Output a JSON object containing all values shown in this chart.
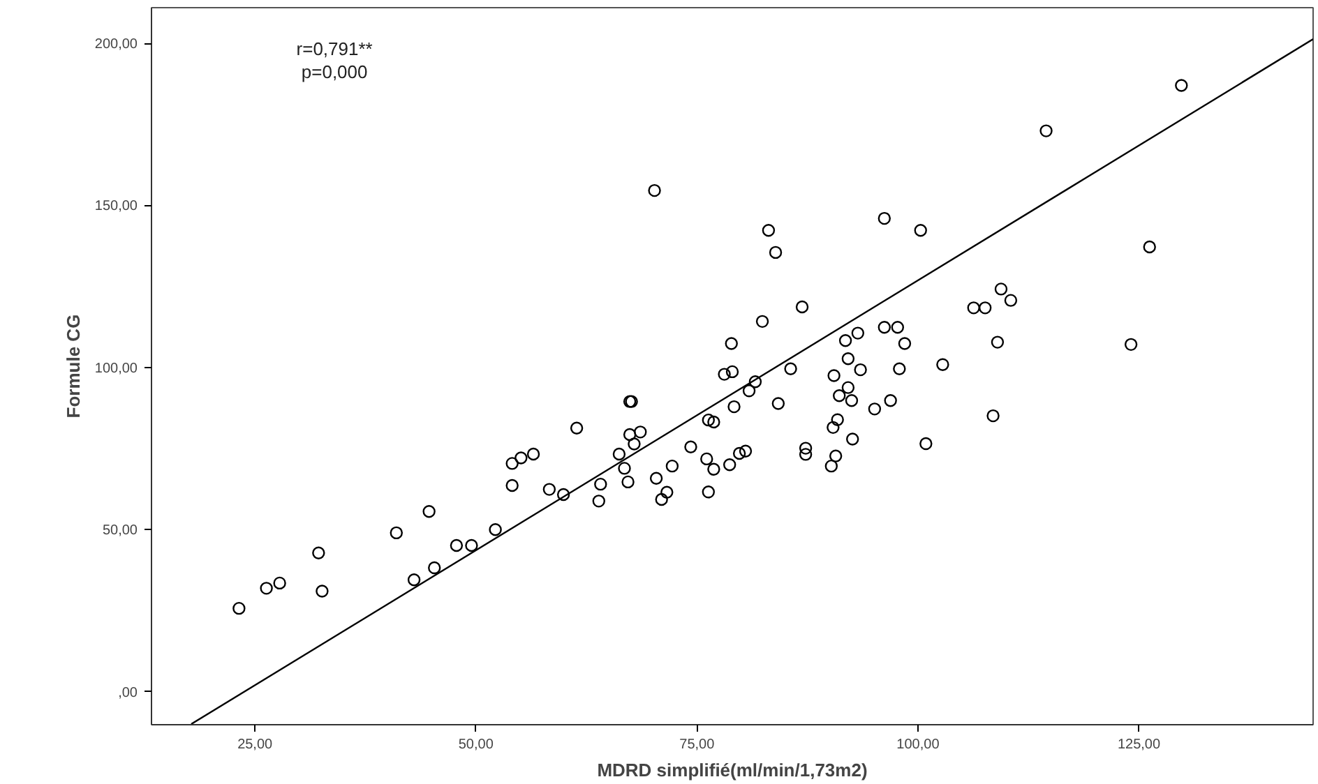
{
  "chart_data": {
    "type": "scatter",
    "xlabel": "MDRD simplifié(ml/min/1,73m2)",
    "ylabel": "Formule CG",
    "annotations": [
      "r=0,791**",
      "p=0,000"
    ],
    "xlim": [
      13.3,
      144.7
    ],
    "ylim": [
      -10.2,
      211
    ],
    "xticks": [
      {
        "value": 25,
        "label": "25,00"
      },
      {
        "value": 50,
        "label": "50,00"
      },
      {
        "value": 75,
        "label": "75,00"
      },
      {
        "value": 100,
        "label": "100,00"
      },
      {
        "value": 125,
        "label": "125,00"
      }
    ],
    "yticks": [
      {
        "value": 0,
        "label": ",00"
      },
      {
        "value": 50,
        "label": "50,00"
      },
      {
        "value": 100,
        "label": "100,00"
      },
      {
        "value": 150,
        "label": "150,00"
      },
      {
        "value": 200,
        "label": "200,00"
      }
    ],
    "grid": false,
    "marker": "circle",
    "series": [
      {
        "color": "#000000",
        "x": [
          23.2,
          26.3,
          27.8,
          32.2,
          32.6,
          41.0,
          44.7,
          43.0,
          45.3,
          47.8,
          49.5,
          52.2,
          54.1,
          54.1,
          55.1,
          56.5,
          58.3,
          59.9,
          61.4,
          63.9,
          64.1,
          66.2,
          66.8,
          67.2,
          67.4,
          67.6,
          67.4,
          68.6,
          67.9,
          70.4,
          71.0,
          71.6,
          72.2,
          74.3,
          76.1,
          76.9,
          76.3,
          76.3,
          76.9,
          78.7,
          78.1,
          79.0,
          79.2,
          79.8,
          80.5,
          80.9,
          81.6,
          84.2,
          85.6,
          87.3,
          87.3,
          90.5,
          92.1,
          91.1,
          92.5,
          90.9,
          90.4,
          90.7,
          90.2,
          92.6,
          93.5,
          92.1,
          97.9,
          102.8,
          96.9,
          95.1,
          100.9,
          108.5,
          129.8,
          114.5,
          83.1,
          83.9,
          96.2,
          100.3,
          126.2,
          86.9,
          82.4,
          78.9,
          109.4,
          106.3,
          107.6,
          110.5,
          96.2,
          97.7,
          93.2,
          91.8,
          98.5,
          109.0,
          124.1,
          70.2
        ],
        "values": [
          25.7,
          31.9,
          33.5,
          42.8,
          31.0,
          49.0,
          55.6,
          34.5,
          38.2,
          45.1,
          45.1,
          50.0,
          63.6,
          70.4,
          72.1,
          73.3,
          62.4,
          60.8,
          81.3,
          58.8,
          64.0,
          73.3,
          68.9,
          64.7,
          89.5,
          89.5,
          79.3,
          80.1,
          76.4,
          65.8,
          59.3,
          61.5,
          69.6,
          75.5,
          71.8,
          68.6,
          61.6,
          83.8,
          83.2,
          70.0,
          97.9,
          98.7,
          87.9,
          73.5,
          74.2,
          92.8,
          95.6,
          88.9,
          99.6,
          75.1,
          73.2,
          97.5,
          93.8,
          91.3,
          89.8,
          83.9,
          81.5,
          72.7,
          69.6,
          77.9,
          99.3,
          102.7,
          99.6,
          100.9,
          89.8,
          87.2,
          76.5,
          85.1,
          187.0,
          173.0,
          142.3,
          135.5,
          146.0,
          142.3,
          137.2,
          118.7,
          114.2,
          107.4,
          124.2,
          118.4,
          118.4,
          120.7,
          112.4,
          112.4,
          110.6,
          108.3,
          107.4,
          107.8,
          107.1,
          154.6
        ]
      },
      {
        "type": "line",
        "color": "#000000",
        "marker": "none",
        "x": [
          17.8,
          144.7
        ],
        "values": [
          -10.0,
          201.3
        ]
      }
    ]
  }
}
